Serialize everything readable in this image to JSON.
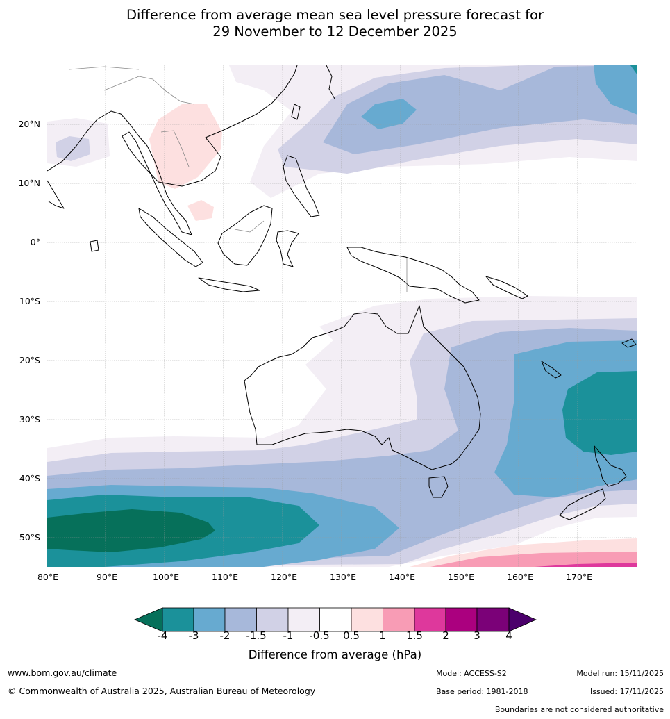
{
  "title_line1": "Difference from average mean sea level pressure forecast for",
  "title_line2": "29 November to 12 December 2025",
  "lat_labels": [
    "20°N",
    "10°N",
    "0°",
    "10°S",
    "20°S",
    "30°S",
    "40°S",
    "50°S"
  ],
  "lon_labels": [
    "80°E",
    "90°E",
    "100°E",
    "110°E",
    "120°E",
    "130°E",
    "140°E",
    "150°E",
    "160°E",
    "170°E"
  ],
  "colorbar": {
    "ticks": [
      "-4",
      "-3",
      "-2",
      "-1.5",
      "-1",
      "-0.5",
      "0.5",
      "1",
      "1.5",
      "2",
      "3",
      "4"
    ],
    "colors": {
      "lt_m4": "#06705a",
      "m4_m3": "#1b919a",
      "m3_m2": "#67aad0",
      "m2_m15": "#a7b8da",
      "m15_m1": "#d1d1e6",
      "m1_m05": "#f3eef5",
      "m05_05": "#ffffff",
      "p05_1": "#fde0e0",
      "p1_15": "#f89cb5",
      "p15_2": "#de389c",
      "p2_3": "#ab007f",
      "p3_4": "#7b0178",
      "gt_4": "#4b006b"
    },
    "label": "Difference from average (hPa)"
  },
  "footer": {
    "website": "www.bom.gov.au/climate",
    "copyright": "© Commonwealth of Australia 2025, Australian Bureau of Meteorology",
    "model": "Model: ACCESS-S2",
    "base_period": "Base period: 1981-2018",
    "model_run": "Model run: 15/11/2025",
    "issued": "Issued: 17/11/2025",
    "disclaimer": "Boundaries are not considered authoritative"
  }
}
